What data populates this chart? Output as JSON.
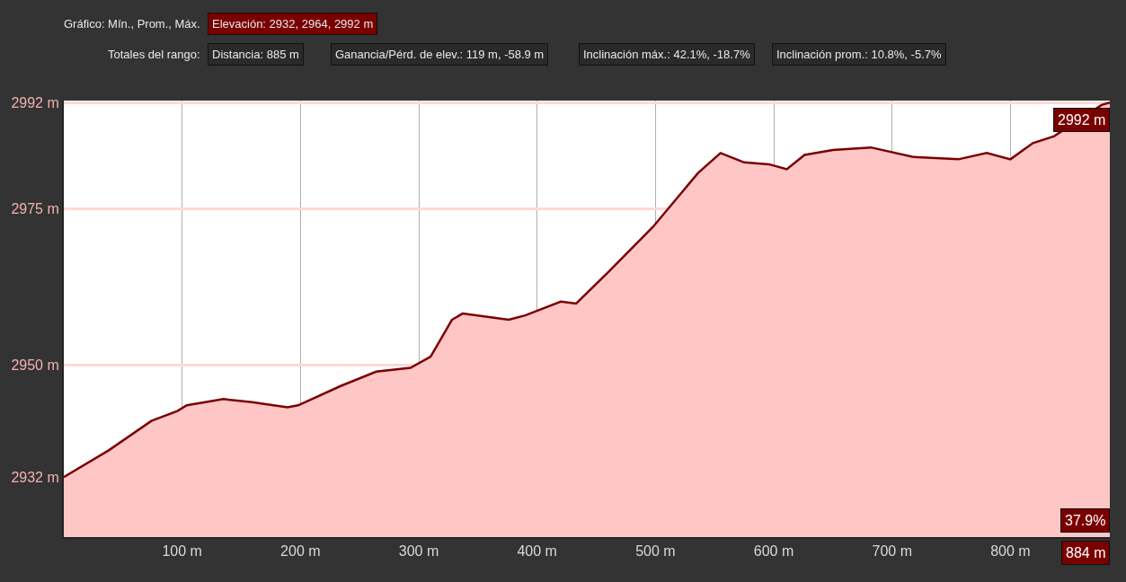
{
  "chart_data": {
    "type": "area",
    "x": [
      0,
      38,
      74,
      96,
      104,
      135,
      159,
      189,
      198,
      234,
      264,
      293,
      310,
      328,
      337,
      376,
      390,
      420,
      433,
      460,
      498,
      536,
      555,
      575,
      596,
      611,
      626,
      650,
      682,
      717,
      756,
      780,
      800,
      819,
      837,
      877,
      884
    ],
    "series": [
      {
        "color": "#7a0000",
        "values": [
          2932,
          2936.3,
          2941,
          2942.6,
          2943.5,
          2944.5,
          2944,
          2943.2,
          2943.5,
          2946.6,
          2948.9,
          2949.5,
          2951.3,
          2957.2,
          2958.2,
          2957.2,
          2957.9,
          2960.1,
          2959.8,
          2964.8,
          2972.1,
          2980.7,
          2983.9,
          2982.4,
          2982.1,
          2981.3,
          2983.6,
          2984.4,
          2984.8,
          2983.3,
          2982.9,
          2983.9,
          2982.9,
          2985.5,
          2986.6,
          2991.6,
          2992
        ]
      }
    ],
    "xlim": [
      0,
      884
    ],
    "xticks": [
      {
        "value": 100,
        "label": "100 m"
      },
      {
        "value": 200,
        "label": "200 m"
      },
      {
        "value": 300,
        "label": "300 m"
      },
      {
        "value": 400,
        "label": "400 m"
      },
      {
        "value": 500,
        "label": "500 m"
      },
      {
        "value": 600,
        "label": "600 m"
      },
      {
        "value": 700,
        "label": "700 m"
      },
      {
        "value": 800,
        "label": "800 m"
      }
    ],
    "ylim": [
      2922.4,
      2992.3
    ],
    "yticks": [
      {
        "value": 2932,
        "label": "2932 m"
      },
      {
        "value": 2950,
        "label": "2950 m"
      },
      {
        "value": 2975,
        "label": "2975 m"
      },
      {
        "value": 2992,
        "label": "2992 m"
      }
    ],
    "grid": true,
    "legend": false,
    "annotations": [
      "Gráfico: Mín., Prom., Máx.",
      "Elevación: 2932, 2964, 2992 m",
      "Totales del rango:",
      "Distancia: 885 m",
      "Ganancia/Pérd. de elev.: 119 m, -58.9 m",
      "Inclinación máx.: 42.1%, -18.7%",
      "Inclinación prom.: 10.8%, -5.7%",
      "37.9%",
      {
        "text": "2992 m",
        "x": 884,
        "y": 2992
      },
      "884 m"
    ]
  }
}
